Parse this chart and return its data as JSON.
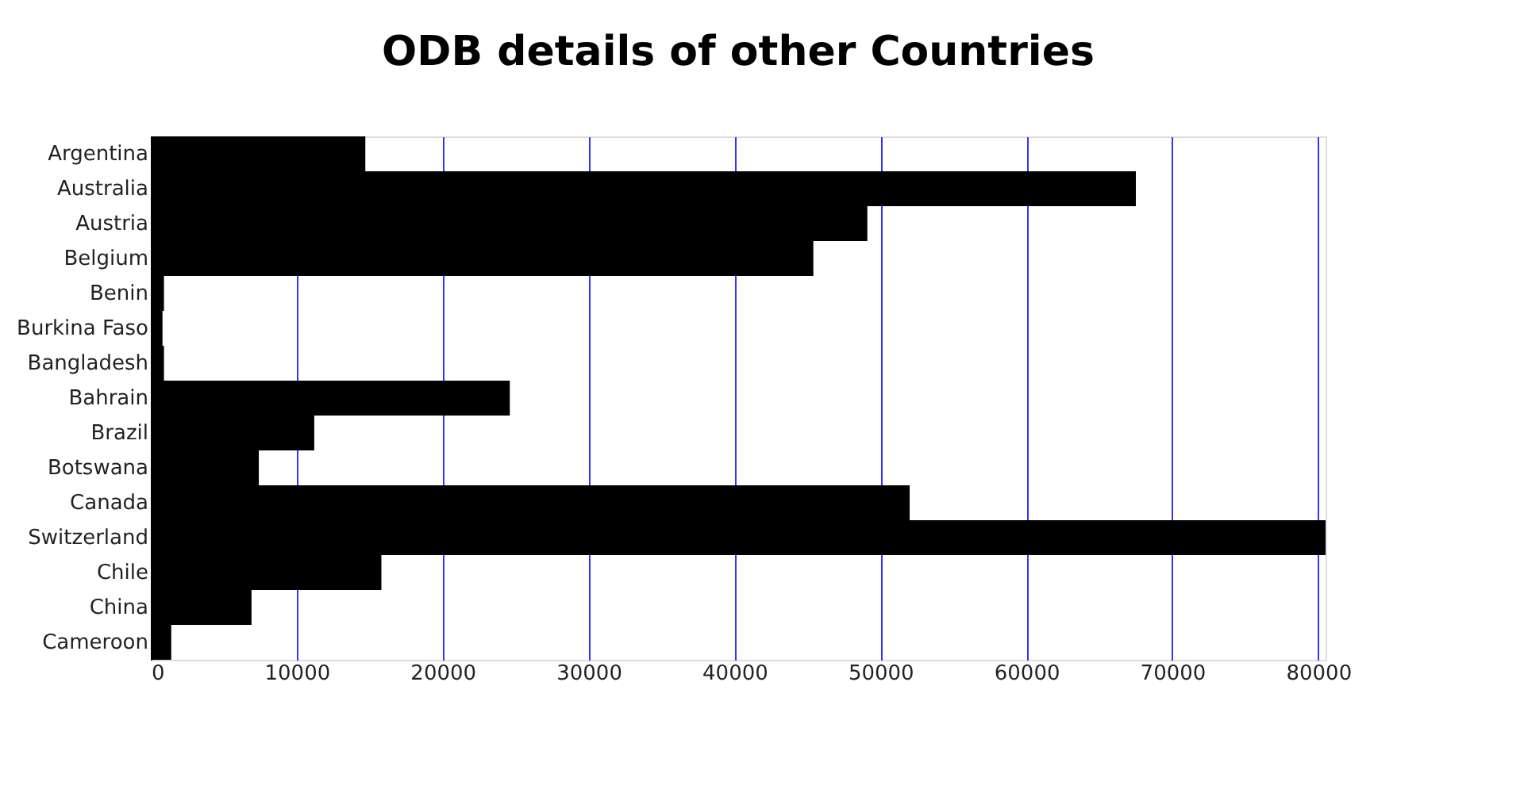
{
  "chart_data": {
    "type": "bar",
    "orientation": "horizontal",
    "title": "ODB details of other Countries",
    "categories": [
      "Argentina",
      "Australia",
      "Austria",
      "Belgium",
      "Benin",
      "Burkina Faso",
      "Bangladesh",
      "Bahrain",
      "Brazil",
      "Botswana",
      "Canada",
      "Switzerland",
      "Chile",
      "China",
      "Cameroon"
    ],
    "values": [
      14700,
      67500,
      49100,
      45400,
      900,
      800,
      900,
      24600,
      11200,
      7400,
      52000,
      80500,
      15800,
      6900,
      1400
    ],
    "color": "#000000",
    "xlim": [
      0,
      80500
    ],
    "xticks": [
      0,
      10000,
      20000,
      30000,
      40000,
      50000,
      60000,
      70000,
      80000
    ],
    "grid": "x"
  }
}
